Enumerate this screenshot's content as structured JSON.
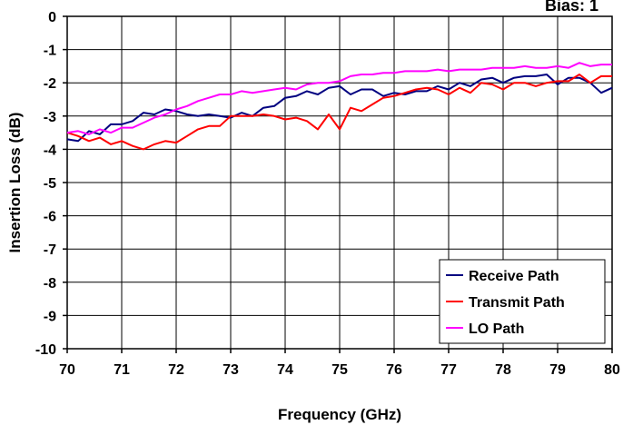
{
  "chart_data": {
    "type": "line",
    "title": "Bias: 1",
    "xlabel": "Frequency (GHz)",
    "ylabel": "Insertion Loss (dB)",
    "xlim": [
      70,
      80
    ],
    "ylim": [
      -10,
      0
    ],
    "x_ticks": [
      "70",
      "71",
      "72",
      "73",
      "74",
      "75",
      "76",
      "77",
      "78",
      "79",
      "80"
    ],
    "y_ticks": [
      "0",
      "-1",
      "-2",
      "-3",
      "-4",
      "-5",
      "-6",
      "-7",
      "-8",
      "-9",
      "-10"
    ],
    "grid": true,
    "legend_position": "bottom-right",
    "series": [
      {
        "name": "Receive Path",
        "color": "#000080",
        "x": [
          70,
          70.2,
          70.4,
          70.6,
          70.8,
          71,
          71.2,
          71.4,
          71.6,
          71.8,
          72,
          72.2,
          72.4,
          72.6,
          72.8,
          73,
          73.2,
          73.4,
          73.6,
          73.8,
          74,
          74.2,
          74.4,
          74.6,
          74.8,
          75,
          75.2,
          75.4,
          75.6,
          75.8,
          76,
          76.2,
          76.4,
          76.6,
          76.8,
          77,
          77.2,
          77.4,
          77.6,
          77.8,
          78,
          78.2,
          78.4,
          78.6,
          78.8,
          79,
          79.2,
          79.4,
          79.6,
          79.8,
          80
        ],
        "y": [
          -3.7,
          -3.75,
          -3.45,
          -3.55,
          -3.25,
          -3.25,
          -3.15,
          -2.9,
          -2.95,
          -2.8,
          -2.85,
          -2.95,
          -3.0,
          -2.95,
          -3.0,
          -3.05,
          -2.9,
          -3.0,
          -2.75,
          -2.7,
          -2.45,
          -2.4,
          -2.25,
          -2.35,
          -2.15,
          -2.1,
          -2.35,
          -2.2,
          -2.2,
          -2.4,
          -2.3,
          -2.35,
          -2.25,
          -2.25,
          -2.1,
          -2.2,
          -2.0,
          -2.1,
          -1.9,
          -1.85,
          -2.0,
          -1.85,
          -1.8,
          -1.8,
          -1.75,
          -2.05,
          -1.85,
          -1.85,
          -2.0,
          -2.3,
          -2.15
        ]
      },
      {
        "name": "Transmit Path",
        "color": "#ff0000",
        "x": [
          70,
          70.2,
          70.4,
          70.6,
          70.8,
          71,
          71.2,
          71.4,
          71.6,
          71.8,
          72,
          72.2,
          72.4,
          72.6,
          72.8,
          73,
          73.2,
          73.4,
          73.6,
          73.8,
          74,
          74.2,
          74.4,
          74.6,
          74.8,
          75,
          75.2,
          75.4,
          75.6,
          75.8,
          76,
          76.2,
          76.4,
          76.6,
          76.8,
          77,
          77.2,
          77.4,
          77.6,
          77.8,
          78,
          78.2,
          78.4,
          78.6,
          78.8,
          79,
          79.2,
          79.4,
          79.6,
          79.8,
          80
        ],
        "y": [
          -3.5,
          -3.6,
          -3.75,
          -3.65,
          -3.85,
          -3.75,
          -3.9,
          -4.0,
          -3.85,
          -3.75,
          -3.8,
          -3.6,
          -3.4,
          -3.3,
          -3.3,
          -3.0,
          -3.0,
          -3.0,
          -2.95,
          -3.0,
          -3.1,
          -3.05,
          -3.15,
          -3.4,
          -2.95,
          -3.4,
          -2.75,
          -2.85,
          -2.65,
          -2.45,
          -2.4,
          -2.3,
          -2.2,
          -2.15,
          -2.2,
          -2.35,
          -2.15,
          -2.3,
          -2.0,
          -2.05,
          -2.2,
          -2.0,
          -2.0,
          -2.1,
          -2.0,
          -1.95,
          -1.95,
          -1.75,
          -2.0,
          -1.8,
          -1.8
        ]
      },
      {
        "name": "LO Path",
        "color": "#ff00ff",
        "x": [
          70,
          70.2,
          70.4,
          70.6,
          70.8,
          71,
          71.2,
          71.4,
          71.6,
          71.8,
          72,
          72.2,
          72.4,
          72.6,
          72.8,
          73,
          73.2,
          73.4,
          73.6,
          73.8,
          74,
          74.2,
          74.4,
          74.6,
          74.8,
          75,
          75.2,
          75.4,
          75.6,
          75.8,
          76,
          76.2,
          76.4,
          76.6,
          76.8,
          77,
          77.2,
          77.4,
          77.6,
          77.8,
          78,
          78.2,
          78.4,
          78.6,
          78.8,
          79,
          79.2,
          79.4,
          79.6,
          79.8,
          80
        ],
        "y": [
          -3.5,
          -3.45,
          -3.55,
          -3.4,
          -3.5,
          -3.35,
          -3.35,
          -3.2,
          -3.05,
          -2.95,
          -2.8,
          -2.7,
          -2.55,
          -2.45,
          -2.35,
          -2.35,
          -2.25,
          -2.3,
          -2.25,
          -2.2,
          -2.15,
          -2.2,
          -2.05,
          -2.0,
          -2.0,
          -1.95,
          -1.8,
          -1.75,
          -1.75,
          -1.7,
          -1.7,
          -1.65,
          -1.65,
          -1.65,
          -1.6,
          -1.65,
          -1.6,
          -1.6,
          -1.6,
          -1.55,
          -1.55,
          -1.55,
          -1.5,
          -1.55,
          -1.55,
          -1.5,
          -1.55,
          -1.4,
          -1.5,
          -1.45,
          -1.45
        ]
      }
    ]
  }
}
